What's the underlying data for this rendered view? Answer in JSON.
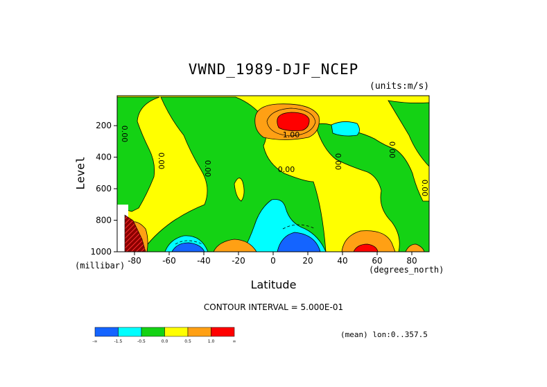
{
  "chart_data": {
    "type": "heatmap",
    "title": "VWND_1989-DJF_NCEP",
    "units_label": "(units:m/s)",
    "xlabel": "Latitude",
    "x_units_label": "(degrees_north)",
    "ylabel": "Level",
    "y_units_label": "(millibar)",
    "xlim": [
      -90,
      90
    ],
    "ylim": [
      1000,
      10
    ],
    "x_ticks": [
      "-80",
      "-60",
      "-40",
      "-20",
      "0",
      "20",
      "40",
      "60",
      "80"
    ],
    "y_ticks": [
      "200",
      "400",
      "600",
      "800",
      "1000"
    ],
    "contour_interval_text": "CONTOUR INTERVAL = 5.000E-01",
    "footer_text": "(mean) lon:0..357.5",
    "contour_labels": [
      "1.00",
      "0.00",
      "0.00",
      "0.00",
      "0.00",
      "0.00",
      "0.00",
      "0.00"
    ],
    "colorbar": {
      "ticks": [
        "-∞",
        "-1.5",
        "-0.5",
        "0.0",
        "0.5",
        "1.0",
        "∞"
      ],
      "colors": [
        "#1464ff",
        "#00ffff",
        "#14d214",
        "#ffff00",
        "#ffa014",
        "#ff0000"
      ]
    },
    "regions": [
      {
        "name": "upper-tropospheric-maximum",
        "lat": 10,
        "level": 190,
        "value": 1.5
      },
      {
        "name": "upper-negative-cyan",
        "lat": 42,
        "level": 220,
        "value": -0.7
      },
      {
        "name": "surface-negative-equatorial",
        "lat": 14,
        "level": 960,
        "value": -1.5
      },
      {
        "name": "surface-negative-southern",
        "lat": -55,
        "level": 980,
        "value": -1.5
      },
      {
        "name": "surface-positive-midlatitude",
        "lat": 52,
        "level": 970,
        "value": 1.5
      },
      {
        "name": "surface-positive-southern",
        "lat": -25,
        "level": 980,
        "value": 0.7
      }
    ]
  }
}
